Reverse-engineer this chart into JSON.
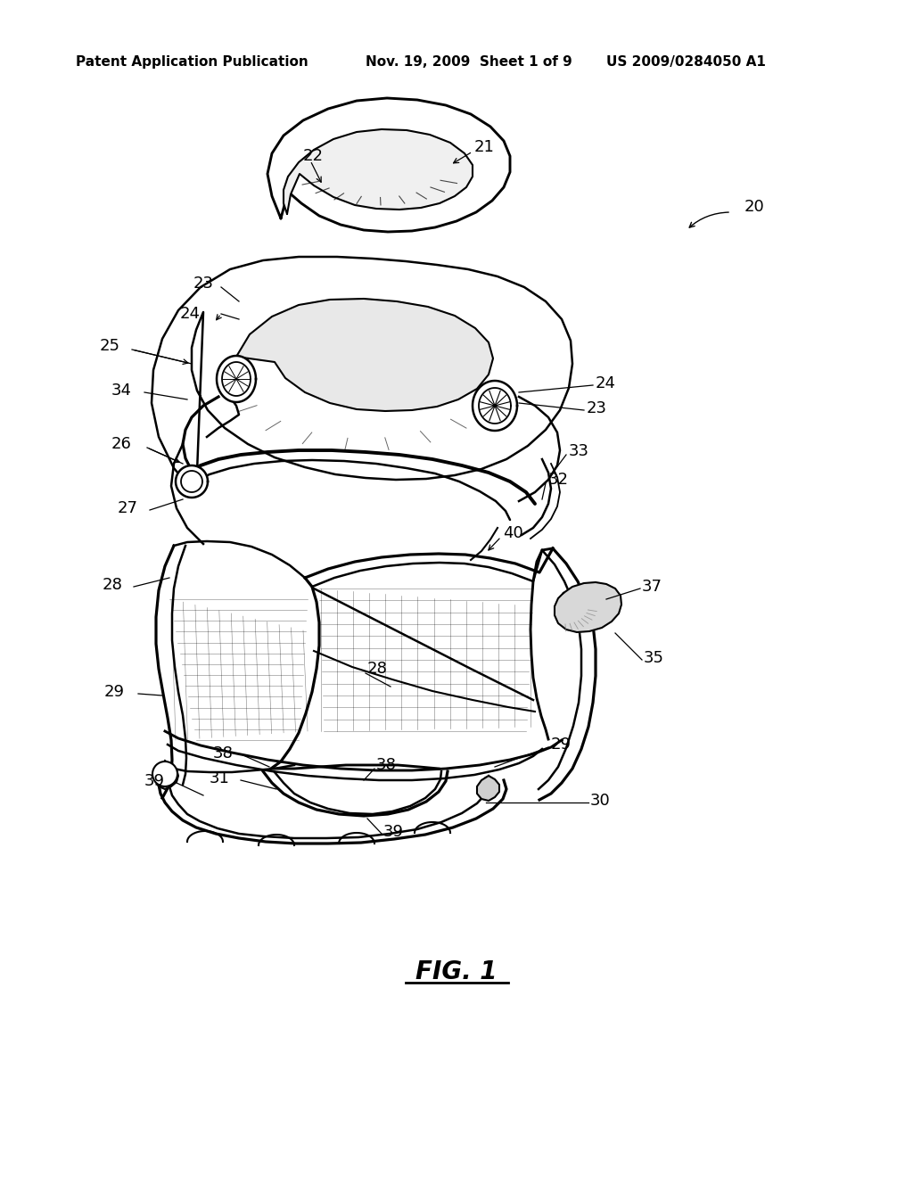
{
  "background_color": "#ffffff",
  "header_left": "Patent Application Publication",
  "header_center": "Nov. 19, 2009  Sheet 1 of 9",
  "header_right": "US 2009/0284050 A1",
  "figure_label": "FIG. 1",
  "header_fontsize": 11,
  "label_fontsize": 13,
  "fig_label_fontsize": 20,
  "line_color": "#000000",
  "lw_main": 1.8,
  "lw_thin": 1.0
}
